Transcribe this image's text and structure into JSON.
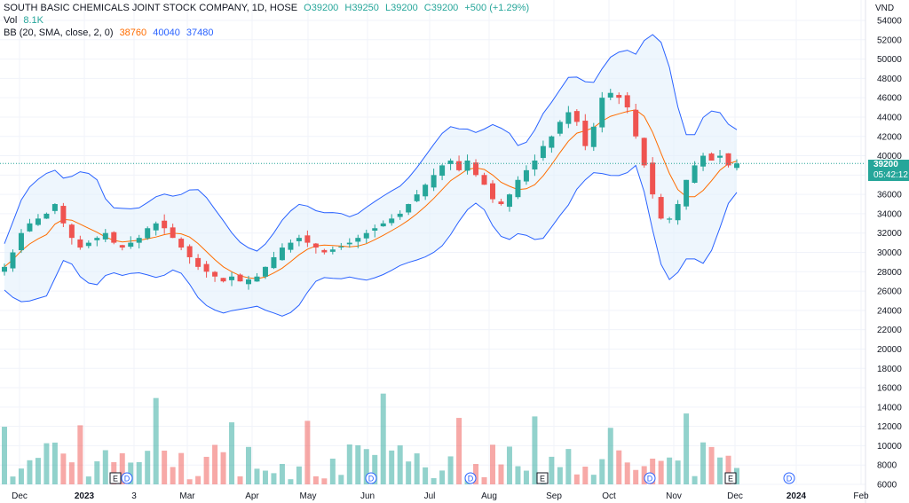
{
  "legend": {
    "title": "SOUTH BASIC CHEMICALS JOINT STOCK COMPANY, 1D, HOSE",
    "open": "O39200",
    "high": "H39250",
    "low": "L39200",
    "close": "C39200",
    "change": "+500 (+1.29%)",
    "vol_label": "Vol",
    "vol_value": "8.1K",
    "bb_label": "BB (20, SMA, close, 2, 0)",
    "bb_basis": "38760",
    "bb_upper": "40040",
    "bb_lower": "37480"
  },
  "currency": "VND",
  "price_tag": {
    "price": "39200",
    "countdown": "05:42:12"
  },
  "colors": {
    "up": "#26a69a",
    "down": "#ef5350",
    "bb_band": "#2962ff",
    "bb_basis": "#ff6d00",
    "fill": "#e3f0fc"
  },
  "chart_data": {
    "type": "candlestick",
    "price_axis": {
      "ticks": [
        "54000",
        "52000",
        "50000",
        "48000",
        "46000",
        "44000",
        "42000",
        "40000",
        "38000",
        "36000",
        "34000",
        "32000",
        "30000",
        "28000",
        "26000",
        "24000",
        "22000",
        "20000",
        "18000",
        "16000",
        "14000",
        "12000",
        "10000",
        "8000",
        "6000"
      ],
      "min": 6000,
      "max": 54000
    },
    "time_axis": {
      "labels": [
        "Dec",
        "2023",
        "3",
        "Mar",
        "Apr",
        "May",
        "Jun",
        "Jul",
        "Aug",
        "Sep",
        "Oct",
        "Nov",
        "Dec",
        "2024",
        "Feb"
      ]
    },
    "close_series": [
      28500,
      30000,
      32000,
      33000,
      33500,
      34000,
      35000,
      33000,
      31500,
      30500,
      31000,
      31500,
      32000,
      31000,
      30500,
      31000,
      31500,
      32500,
      33000,
      32500,
      31500,
      30500,
      29500,
      28500,
      28000,
      27500,
      27000,
      27500,
      27000,
      27200,
      27500,
      28500,
      29500,
      30500,
      31000,
      31500,
      31000,
      30500,
      30000,
      30300,
      30600,
      31000,
      31500,
      32000,
      32500,
      33000,
      33500,
      34000,
      35000,
      36000,
      37000,
      38000,
      39000,
      39500,
      38500,
      39500,
      38000,
      37000,
      35500,
      35000,
      36000,
      37500,
      38500,
      39500,
      41000,
      42000,
      43500,
      44500,
      43500,
      41000,
      43000,
      46000,
      46500,
      46000,
      45000,
      42000,
      39000,
      36000,
      33500,
      33500,
      35000,
      37500,
      39000,
      40000,
      39500,
      40000,
      39000,
      39200
    ],
    "markers": [
      "E",
      "D",
      "D",
      "D",
      "E",
      "D",
      "E",
      "D"
    ]
  }
}
